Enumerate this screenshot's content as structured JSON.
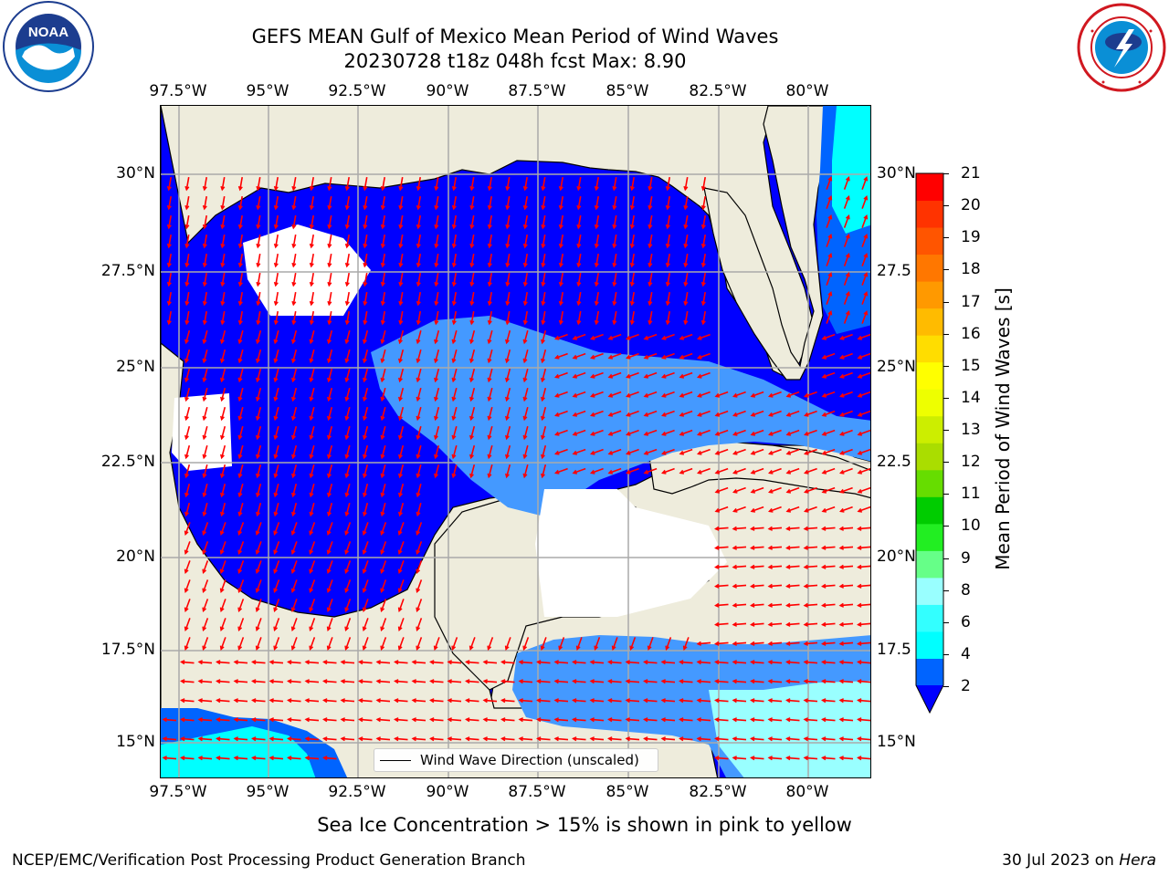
{
  "header": {
    "title_line1": "GEFS MEAN Gulf of Mexico Mean Period of Wind Waves",
    "title_line2": "20230728 t18z 048h fcst   Max: 8.90"
  },
  "logos": {
    "left": "NOAA",
    "right": "NATIONAL WEATHER SERVICE"
  },
  "axes": {
    "lon_labels": [
      "97.5°W",
      "95°W",
      "92.5°W",
      "90°W",
      "87.5°W",
      "85°W",
      "82.5°W",
      "80°W"
    ],
    "lat_labels_left": [
      "30°N",
      "27.5°N",
      "25°N",
      "22.5°N",
      "20°N",
      "17.5°N",
      "15°N"
    ],
    "lat_labels_right": [
      "30°N",
      "27.5",
      "25°N",
      "22.5",
      "20°N",
      "17.5",
      "15°N"
    ]
  },
  "map_legend": {
    "label": "Wind Wave Direction (unscaled)"
  },
  "colorbar": {
    "label": "Mean Period of Wind Waves [s]",
    "ticks": [
      "21",
      "20",
      "19",
      "18",
      "17",
      "16",
      "15",
      "14",
      "13",
      "12",
      "11",
      "10",
      "9",
      "8",
      "6",
      "4",
      "2"
    ],
    "colors": [
      "#0064ff",
      "#00ffff",
      "#33ffff",
      "#99ffff",
      "#66ff88",
      "#22ee22",
      "#00cc00",
      "#66dd00",
      "#aadd00",
      "#ccee00",
      "#eeff00",
      "#ffff00",
      "#ffdd00",
      "#ffbb00",
      "#ff9900",
      "#ff7700",
      "#ff5500",
      "#ff3300",
      "#ff0000"
    ],
    "extend_color": "#0000ff"
  },
  "colors": {
    "land": "#eeecdc",
    "wave_deep_blue": "#0000ff",
    "wave_blue": "#0064ff",
    "wave_light_blue": "#4499ff",
    "wave_cyan": "#00ffff",
    "wave_pale_cyan": "#99ffff",
    "arrow": "#ff0000"
  },
  "footer": {
    "note": "Sea Ice Concentration > 15% is shown in pink to yellow",
    "credit": "NCEP/EMC/Verification Post Processing Product Generation Branch",
    "date_prefix": "30 Jul 2023 on ",
    "date_host": "Hera"
  }
}
